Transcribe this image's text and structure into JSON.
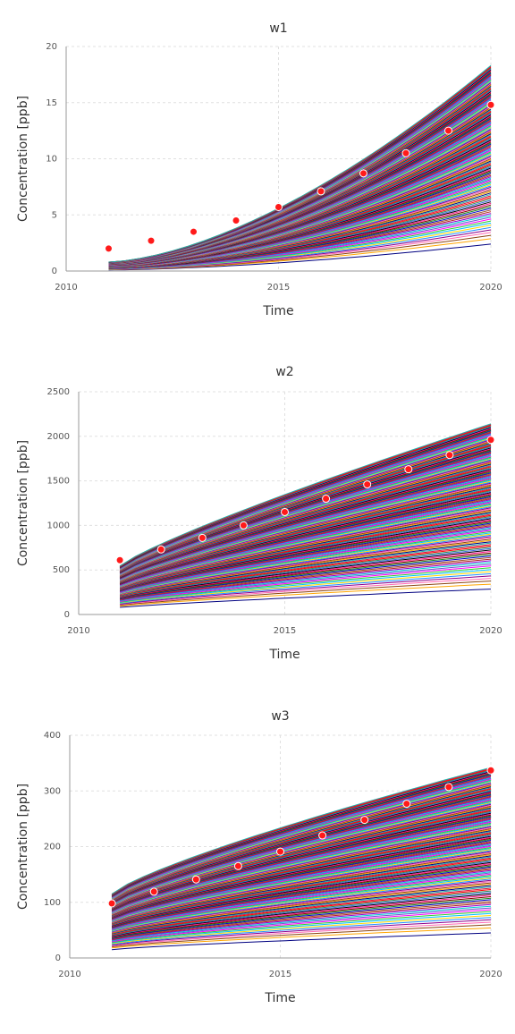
{
  "chart_data": [
    {
      "type": "line",
      "title": "w1",
      "xlabel": "Time",
      "ylabel": "Concentration [ppb]",
      "xlim": [
        2010,
        2020
      ],
      "ylim": [
        0,
        20
      ],
      "xticks": [
        2010,
        2015,
        2020
      ],
      "yticks": [
        0,
        5,
        10,
        15,
        20
      ],
      "grid": true,
      "ensemble": {
        "x_start": 2011,
        "x_end": 2020,
        "y_start_min": 0.1,
        "y_start_max": 0.8,
        "y_end_min": 2.4,
        "y_end_max": 18.3,
        "curve": 1.6,
        "count": 150
      },
      "observed": {
        "x": [
          2011,
          2012,
          2013,
          2014,
          2015,
          2016,
          2017,
          2018,
          2019,
          2020
        ],
        "y": [
          2.0,
          2.7,
          3.5,
          4.5,
          5.7,
          7.1,
          8.7,
          10.5,
          12.5,
          14.8
        ]
      }
    },
    {
      "type": "line",
      "title": "w2",
      "xlabel": "Time",
      "ylabel": "Concentration [ppb]",
      "xlim": [
        2010,
        2020
      ],
      "ylim": [
        0,
        2500
      ],
      "xticks": [
        2010,
        2015,
        2020
      ],
      "yticks": [
        0,
        500,
        1000,
        1500,
        2000,
        2500
      ],
      "grid": true,
      "ensemble": {
        "x_start": 2011,
        "x_end": 2020,
        "y_start_min": 80,
        "y_start_max": 545,
        "y_end_min": 285,
        "y_end_max": 2140,
        "curve": 0.85,
        "count": 150
      },
      "observed": {
        "x": [
          2011,
          2012,
          2013,
          2014,
          2015,
          2016,
          2017,
          2018,
          2019,
          2020
        ],
        "y": [
          610,
          730,
          860,
          1000,
          1150,
          1300,
          1460,
          1630,
          1790,
          1960
        ]
      }
    },
    {
      "type": "line",
      "title": "w3",
      "xlabel": "Time",
      "ylabel": "Concentration [ppb]",
      "xlim": [
        2010,
        2020
      ],
      "ylim": [
        0,
        400
      ],
      "xticks": [
        2010,
        2015,
        2020
      ],
      "yticks": [
        0,
        100,
        200,
        300,
        400
      ],
      "grid": true,
      "ensemble": {
        "x_start": 2011,
        "x_end": 2020,
        "y_start_min": 15,
        "y_start_max": 115,
        "y_end_min": 45,
        "y_end_max": 342,
        "curve": 0.8,
        "count": 150
      },
      "observed": {
        "x": [
          2011,
          2012,
          2013,
          2014,
          2015,
          2016,
          2017,
          2018,
          2019,
          2020
        ],
        "y": [
          98,
          119,
          141,
          165,
          191,
          220,
          248,
          277,
          307,
          337
        ]
      }
    }
  ],
  "style": {
    "observed_color": "#ff1a1a",
    "grid_color": "#e0e0e0",
    "axis_color": "#999999",
    "text_color": "#333333",
    "palette": [
      "#000080",
      "#ff1493",
      "#00ced1",
      "#8b008b",
      "#ff0000",
      "#0000cd",
      "#32cd32",
      "#ffa500",
      "#000000",
      "#9400d3",
      "#1e90ff",
      "#dc143c",
      "#228b22",
      "#ff00ff",
      "#8b4513",
      "#4169e1",
      "#b22222",
      "#ffd700",
      "#20b2aa",
      "#800000",
      "#6a5acd",
      "#ff69b4",
      "#2e8b57",
      "#a0522d",
      "#00bfff"
    ]
  }
}
